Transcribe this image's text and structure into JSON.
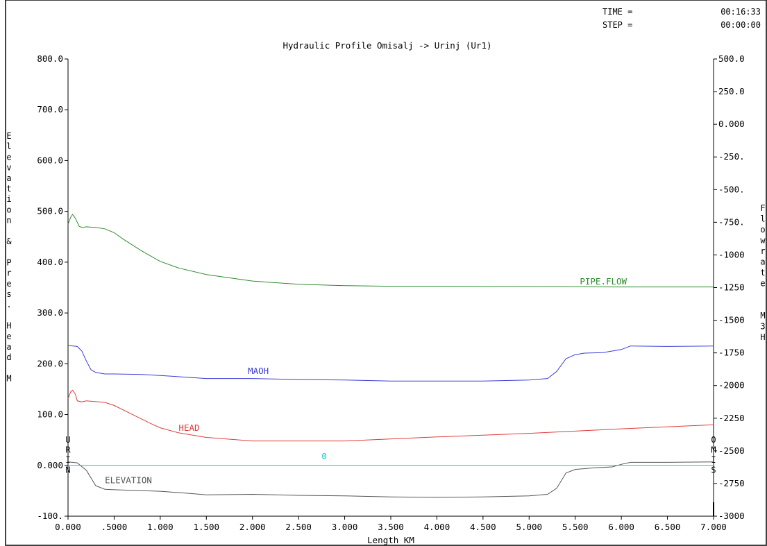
{
  "header": {
    "time_label": "TIME =",
    "time_value": "00:16:33",
    "step_label": "STEP =",
    "step_value": "00:00:00"
  },
  "chart_data": {
    "type": "line",
    "title": "Hydraulic Profile Omisalj -> Urinj (Ur1)",
    "xlabel": "Length KM",
    "ylabel_left": "Elevation & Pres. Head M",
    "ylabel_right": "Flowrate M3H",
    "xlim": [
      0,
      7
    ],
    "ylim_left": [
      -100,
      800
    ],
    "ylim_right": [
      -3000,
      500
    ],
    "x_ticks": [
      "0.000",
      ".5000",
      "1.000",
      "1.500",
      "2.000",
      "2.500",
      "3.000",
      "3.500",
      "4.000",
      "4.500",
      "5.000",
      "5.500",
      "6.000",
      "6.500",
      "7.000"
    ],
    "left_ticks": [
      "800.0",
      "700.0",
      "600.0",
      "500.0",
      "400.0",
      "300.0",
      "200.0",
      "100.0",
      "0.000",
      "-100."
    ],
    "right_ticks": [
      "500.0",
      "250.0",
      "0.000",
      "-250.",
      "-500.",
      "-750.",
      "-1000",
      "-1250",
      "-1500",
      "-1750",
      "-2000",
      "-2250",
      "-2500",
      "-2750",
      "-3000"
    ],
    "left_end_label": [
      "U",
      "R",
      "I",
      "N"
    ],
    "right_end_label": [
      "O",
      "M",
      "I",
      "S"
    ],
    "series": [
      {
        "name": "PIPE.FLOW",
        "color": "#2e8b2e",
        "axis": "right",
        "x": [
          0,
          0.03,
          0.05,
          0.08,
          0.12,
          0.15,
          0.2,
          0.3,
          0.4,
          0.5,
          0.6,
          0.8,
          1.0,
          1.2,
          1.5,
          2.0,
          2.5,
          3.0,
          3.5,
          4.0,
          5.0,
          6.0,
          7.0
        ],
        "values": [
          -765,
          -710,
          -690,
          -720,
          -780,
          -790,
          -785,
          -790,
          -800,
          -830,
          -880,
          -970,
          -1050,
          -1100,
          -1150,
          -1200,
          -1225,
          -1235,
          -1240,
          -1240,
          -1243,
          -1245,
          -1245
        ],
        "label_x": 5.55,
        "label_y": -1225
      },
      {
        "name": "MAOH",
        "color": "#3a3ad8",
        "axis": "left",
        "x": [
          0,
          0.1,
          0.15,
          0.2,
          0.25,
          0.3,
          0.4,
          0.5,
          0.8,
          1.0,
          1.5,
          2.0,
          2.5,
          3.0,
          3.5,
          4.0,
          4.5,
          5.0,
          5.2,
          5.3,
          5.4,
          5.5,
          5.6,
          5.8,
          6.0,
          6.1,
          6.5,
          7.0
        ],
        "values": [
          236,
          234,
          225,
          205,
          188,
          183,
          180,
          180,
          179,
          177,
          171,
          171,
          169,
          168,
          166,
          166,
          166,
          168,
          171,
          185,
          210,
          218,
          221,
          222,
          228,
          235,
          234,
          235
        ],
        "label_x": 1.95,
        "label_y": 180
      },
      {
        "name": "HEAD",
        "color": "#e03a3a",
        "axis": "left",
        "x": [
          0,
          0.03,
          0.05,
          0.08,
          0.1,
          0.15,
          0.2,
          0.4,
          0.5,
          0.7,
          0.9,
          1.0,
          1.2,
          1.5,
          2.0,
          2.5,
          3.0,
          4.0,
          5.0,
          6.0,
          7.0
        ],
        "values": [
          132,
          145,
          148,
          140,
          127,
          125,
          127,
          124,
          118,
          100,
          82,
          74,
          64,
          55,
          48,
          48,
          48,
          56,
          63,
          72,
          80
        ],
        "label_x": 1.2,
        "label_y": 68
      },
      {
        "name": "ELEVATION",
        "color": "#555555",
        "axis": "left",
        "x": [
          0,
          0.1,
          0.2,
          0.25,
          0.3,
          0.4,
          0.5,
          1.0,
          1.3,
          1.5,
          2.0,
          2.5,
          3.0,
          3.5,
          4.0,
          4.5,
          5.0,
          5.2,
          5.3,
          5.4,
          5.5,
          5.7,
          5.9,
          6.0,
          6.1,
          6.5,
          7.0
        ],
        "values": [
          7,
          5,
          -10,
          -25,
          -40,
          -47,
          -48,
          -51,
          -55,
          -58,
          -57,
          -59,
          -60,
          -62,
          -63,
          -62,
          -60,
          -57,
          -45,
          -15,
          -8,
          -5,
          -3,
          2,
          6,
          6,
          7
        ],
        "label_x": 0.4,
        "label_y": -35
      },
      {
        "name": "0",
        "color": "#00c8d8",
        "axis": "left",
        "x": [
          0,
          7
        ],
        "values": [
          0,
          0
        ],
        "label_x": 2.75,
        "label_y": 12
      }
    ]
  }
}
